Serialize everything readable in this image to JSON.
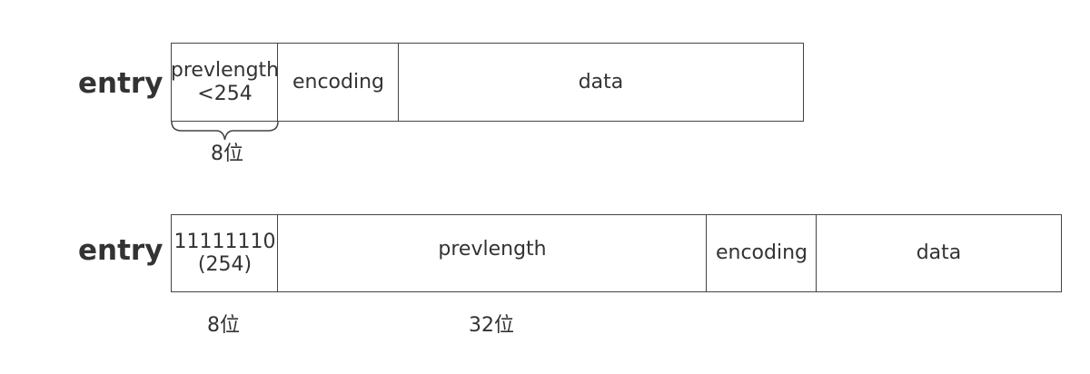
{
  "rows": [
    {
      "label": "entry",
      "cells": [
        {
          "line1": "prevlength",
          "line2": "<254"
        },
        {
          "text": "encoding"
        },
        {
          "text": "data"
        }
      ],
      "notes": [
        "8位"
      ]
    },
    {
      "label": "entry",
      "cells": [
        {
          "line1": "11111110",
          "line2": "(254)"
        },
        {
          "text": "prevlength"
        },
        {
          "text": "encoding"
        },
        {
          "text": "data"
        }
      ],
      "notes": [
        "8位",
        "32位"
      ]
    }
  ]
}
